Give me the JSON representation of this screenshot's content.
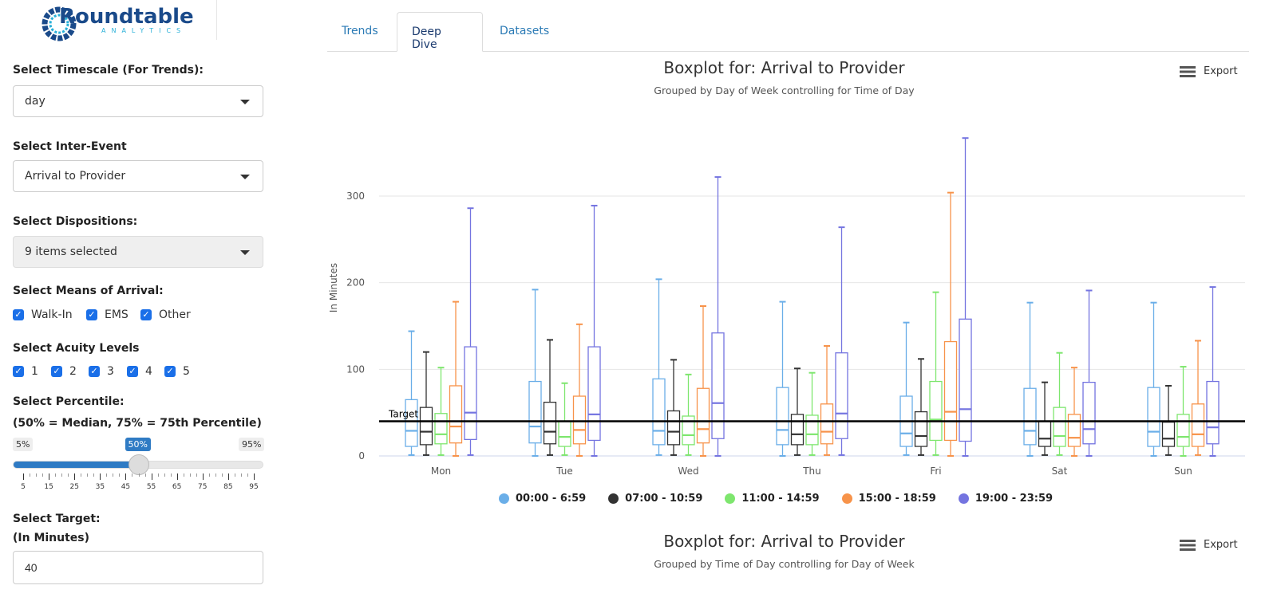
{
  "logo": {
    "name": "Roundtable",
    "sub": "ANALYTICS"
  },
  "tabs": [
    {
      "label": "Trends"
    },
    {
      "label": "Deep Dive",
      "active": true
    },
    {
      "label": "Datasets"
    }
  ],
  "sidebar": {
    "timescale": {
      "label": "Select Timescale (For Trends):",
      "value": "day"
    },
    "inter_event": {
      "label": "Select Inter-Event",
      "value": "Arrival to Provider"
    },
    "dispositions": {
      "label": "Select Dispositions:",
      "value": "9 items selected"
    },
    "means": {
      "label": "Select Means of Arrival:",
      "options": [
        {
          "label": "Walk-In",
          "checked": true
        },
        {
          "label": "EMS",
          "checked": true
        },
        {
          "label": "Other",
          "checked": true
        }
      ]
    },
    "acuity": {
      "label": "Select Acuity Levels",
      "options": [
        {
          "label": "1",
          "checked": true
        },
        {
          "label": "2",
          "checked": true
        },
        {
          "label": "3",
          "checked": true
        },
        {
          "label": "4",
          "checked": true
        },
        {
          "label": "5",
          "checked": true
        }
      ]
    },
    "percentile": {
      "label": "Select Percentile:",
      "sublabel": "(50% = Median, 75% = 75th Percentile)",
      "min_label": "5%",
      "max_label": "95%",
      "value_label": "50%",
      "min": 5,
      "max": 95,
      "value": 50,
      "ticks": [
        "5",
        "15",
        "25",
        "35",
        "45",
        "55",
        "65",
        "75",
        "85",
        "95"
      ]
    },
    "target": {
      "label": "Select Target:",
      "sublabel": "(In Minutes)",
      "value": "40"
    }
  },
  "export_label": "Export",
  "chart2": {
    "title": "Boxplot for: Arrival to Provider",
    "subtitle": "Grouped by Time of Day controlling for Day of Week"
  },
  "chart_data": {
    "type": "boxplot",
    "title": "Boxplot for: Arrival to Provider",
    "subtitle": "Grouped by Day of Week controlling for Time of Day",
    "ylabel": "In Minutes",
    "ylim": [
      0,
      300
    ],
    "yticks": [
      "0",
      "100",
      "200",
      "300"
    ],
    "categories": [
      "Mon",
      "Tue",
      "Wed",
      "Thu",
      "Fri",
      "Sat",
      "Sun"
    ],
    "target": {
      "label": "Target",
      "value": 40
    },
    "legend_position": "bottom",
    "series": [
      {
        "name": "00:00 - 6:59",
        "color": "#6aaee8",
        "boxes": [
          [
            1,
            11,
            29,
            65,
            144
          ],
          [
            0,
            15,
            34,
            86,
            192
          ],
          [
            1,
            13,
            29,
            89,
            204
          ],
          [
            0,
            13,
            30,
            79,
            178
          ],
          [
            1,
            11,
            26,
            69,
            154
          ],
          [
            0,
            13,
            29,
            78,
            177
          ],
          [
            0,
            11,
            28,
            79,
            177
          ]
        ]
      },
      {
        "name": "07:00 - 10:59",
        "color": "#333333",
        "boxes": [
          [
            1,
            13,
            28,
            56,
            120
          ],
          [
            1,
            14,
            28,
            62,
            134
          ],
          [
            1,
            13,
            28,
            52,
            111
          ],
          [
            1,
            13,
            25,
            48,
            101
          ],
          [
            1,
            11,
            23,
            51,
            112
          ],
          [
            1,
            11,
            20,
            40,
            85
          ],
          [
            1,
            11,
            20,
            39,
            81
          ]
        ]
      },
      {
        "name": "11:00 - 14:59",
        "color": "#7ee66e",
        "boxes": [
          [
            1,
            14,
            25,
            49,
            102
          ],
          [
            1,
            11,
            22,
            40,
            84
          ],
          [
            1,
            13,
            24,
            46,
            94
          ],
          [
            1,
            13,
            25,
            47,
            96
          ],
          [
            1,
            18,
            42,
            86,
            189
          ],
          [
            1,
            11,
            23,
            56,
            119
          ],
          [
            0,
            11,
            22,
            48,
            103
          ]
        ]
      },
      {
        "name": "15:00 - 18:59",
        "color": "#f7934a",
        "boxes": [
          [
            0,
            15,
            34,
            81,
            178
          ],
          [
            0,
            14,
            30,
            69,
            152
          ],
          [
            0,
            15,
            31,
            78,
            173
          ],
          [
            1,
            14,
            28,
            60,
            127
          ],
          [
            0,
            18,
            51,
            132,
            304
          ],
          [
            0,
            11,
            21,
            48,
            102
          ],
          [
            1,
            11,
            25,
            60,
            133
          ]
        ]
      },
      {
        "name": "19:00 - 23:59",
        "color": "#7474e0",
        "boxes": [
          [
            1,
            19,
            50,
            126,
            286
          ],
          [
            0,
            18,
            48,
            126,
            289
          ],
          [
            0,
            20,
            61,
            142,
            322
          ],
          [
            1,
            20,
            49,
            119,
            264
          ],
          [
            0,
            17,
            54,
            158,
            367
          ],
          [
            0,
            14,
            31,
            85,
            191
          ],
          [
            0,
            14,
            33,
            86,
            195
          ]
        ]
      }
    ]
  }
}
